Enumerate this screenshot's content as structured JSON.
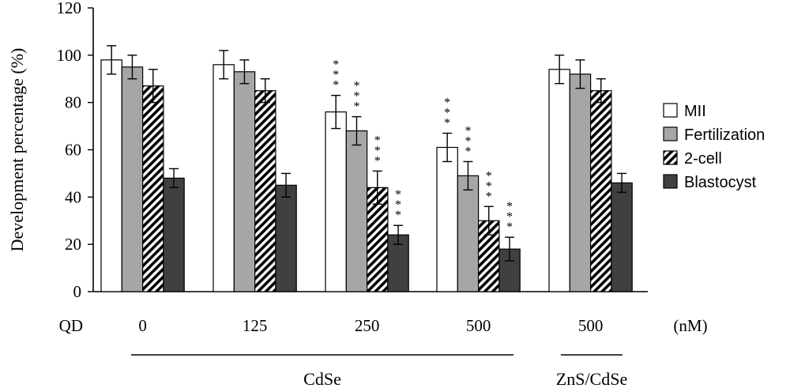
{
  "chart_data": {
    "type": "bar",
    "ylabel": "Development percentage  (%)",
    "ylim": [
      0,
      120
    ],
    "yticks": [
      0,
      20,
      40,
      60,
      80,
      100,
      120
    ],
    "x_prefix_label": "QD",
    "x_unit_label": "(nM)",
    "categories": [
      "0",
      "125",
      "250",
      "500",
      "500"
    ],
    "group_labels": [
      {
        "label": "CdSe",
        "categories": [
          0,
          1,
          2,
          3
        ]
      },
      {
        "label": "ZnS/CdSe",
        "categories": [
          4
        ]
      }
    ],
    "series": [
      {
        "name": "MII",
        "style": "white",
        "values": [
          98,
          96,
          76,
          61,
          94
        ],
        "errors": [
          6,
          6,
          7,
          6,
          6
        ],
        "significance": [
          "",
          "",
          "***",
          "***",
          ""
        ]
      },
      {
        "name": "Fertilization",
        "style": "gray",
        "values": [
          95,
          93,
          68,
          49,
          92
        ],
        "errors": [
          5,
          5,
          6,
          6,
          6
        ],
        "significance": [
          "",
          "",
          "***",
          "***",
          ""
        ]
      },
      {
        "name": "2-cell",
        "style": "hatched",
        "values": [
          87,
          85,
          44,
          30,
          85
        ],
        "errors": [
          7,
          5,
          7,
          6,
          5
        ],
        "significance": [
          "",
          "",
          "***",
          "***",
          ""
        ]
      },
      {
        "name": "Blastocyst",
        "style": "dark",
        "values": [
          48,
          45,
          24,
          18,
          46
        ],
        "errors": [
          4,
          5,
          4,
          5,
          4
        ],
        "significance": [
          "",
          "",
          "***",
          "***",
          ""
        ]
      }
    ],
    "legend": "right",
    "grid": false,
    "colors": {
      "white": "#ffffff",
      "gray": "#a6a6a6",
      "dark": "#404040",
      "stroke": "#000000"
    }
  }
}
